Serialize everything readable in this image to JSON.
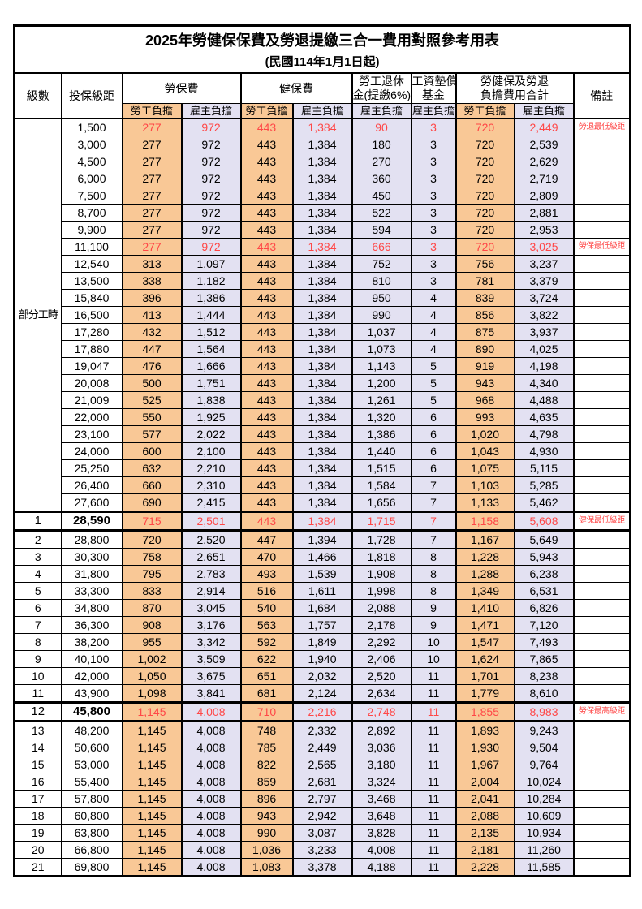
{
  "page": {
    "title_line1": "2025年勞健保保費及勞退提繳三合一費用對照參考用表",
    "title_line2": "(民國114年1月1日起)"
  },
  "header": {
    "level": "級數",
    "bracket": "投保級距",
    "labor_fee": "勞保費",
    "health_fee": "健保費",
    "pension_line1": "勞工退休",
    "pension_line2": "金(提繳6%)",
    "wage_fund_line1": "工資墊償",
    "wage_fund_line2": "基金",
    "total_line1": "勞健保及勞退",
    "total_line2": "負擔費用合計",
    "remark": "備註",
    "employee_share": "勞工負擔",
    "employer_share": "雇主負擔"
  },
  "part_time_label": "部分工時",
  "part_time_rowspan": 23,
  "colors": {
    "employee_col": "#F9C896",
    "employer_col": "#E3E1F2",
    "highlight_text": "#FF4747",
    "border": "#000000"
  },
  "rows": [
    {
      "level": "",
      "bracket": "1,500",
      "values": [
        "277",
        "972",
        "443",
        "1,384",
        "90",
        "3",
        "720",
        "2,449"
      ],
      "remark": "勞退最低級距",
      "red": true,
      "thick": false
    },
    {
      "level": "",
      "bracket": "3,000",
      "values": [
        "277",
        "972",
        "443",
        "1,384",
        "180",
        "3",
        "720",
        "2,539"
      ],
      "remark": "",
      "red": false,
      "thick": false
    },
    {
      "level": "",
      "bracket": "4,500",
      "values": [
        "277",
        "972",
        "443",
        "1,384",
        "270",
        "3",
        "720",
        "2,629"
      ],
      "remark": "",
      "red": false,
      "thick": false
    },
    {
      "level": "",
      "bracket": "6,000",
      "values": [
        "277",
        "972",
        "443",
        "1,384",
        "360",
        "3",
        "720",
        "2,719"
      ],
      "remark": "",
      "red": false,
      "thick": false
    },
    {
      "level": "",
      "bracket": "7,500",
      "values": [
        "277",
        "972",
        "443",
        "1,384",
        "450",
        "3",
        "720",
        "2,809"
      ],
      "remark": "",
      "red": false,
      "thick": false
    },
    {
      "level": "",
      "bracket": "8,700",
      "values": [
        "277",
        "972",
        "443",
        "1,384",
        "522",
        "3",
        "720",
        "2,881"
      ],
      "remark": "",
      "red": false,
      "thick": false
    },
    {
      "level": "",
      "bracket": "9,900",
      "values": [
        "277",
        "972",
        "443",
        "1,384",
        "594",
        "3",
        "720",
        "2,953"
      ],
      "remark": "",
      "red": false,
      "thick": false
    },
    {
      "level": "",
      "bracket": "11,100",
      "values": [
        "277",
        "972",
        "443",
        "1,384",
        "666",
        "3",
        "720",
        "3,025"
      ],
      "remark": "勞保最低級距",
      "red": true,
      "thick": false
    },
    {
      "level": "",
      "bracket": "12,540",
      "values": [
        "313",
        "1,097",
        "443",
        "1,384",
        "752",
        "3",
        "756",
        "3,237"
      ],
      "remark": "",
      "red": false,
      "thick": false
    },
    {
      "level": "",
      "bracket": "13,500",
      "values": [
        "338",
        "1,182",
        "443",
        "1,384",
        "810",
        "3",
        "781",
        "3,379"
      ],
      "remark": "",
      "red": false,
      "thick": false
    },
    {
      "level": "",
      "bracket": "15,840",
      "values": [
        "396",
        "1,386",
        "443",
        "1,384",
        "950",
        "4",
        "839",
        "3,724"
      ],
      "remark": "",
      "red": false,
      "thick": false
    },
    {
      "level": "",
      "bracket": "16,500",
      "values": [
        "413",
        "1,444",
        "443",
        "1,384",
        "990",
        "4",
        "856",
        "3,822"
      ],
      "remark": "",
      "red": false,
      "thick": false
    },
    {
      "level": "",
      "bracket": "17,280",
      "values": [
        "432",
        "1,512",
        "443",
        "1,384",
        "1,037",
        "4",
        "875",
        "3,937"
      ],
      "remark": "",
      "red": false,
      "thick": false
    },
    {
      "level": "",
      "bracket": "17,880",
      "values": [
        "447",
        "1,564",
        "443",
        "1,384",
        "1,073",
        "4",
        "890",
        "4,025"
      ],
      "remark": "",
      "red": false,
      "thick": false
    },
    {
      "level": "",
      "bracket": "19,047",
      "values": [
        "476",
        "1,666",
        "443",
        "1,384",
        "1,143",
        "5",
        "919",
        "4,198"
      ],
      "remark": "",
      "red": false,
      "thick": false
    },
    {
      "level": "",
      "bracket": "20,008",
      "values": [
        "500",
        "1,751",
        "443",
        "1,384",
        "1,200",
        "5",
        "943",
        "4,340"
      ],
      "remark": "",
      "red": false,
      "thick": false
    },
    {
      "level": "",
      "bracket": "21,009",
      "values": [
        "525",
        "1,838",
        "443",
        "1,384",
        "1,261",
        "5",
        "968",
        "4,488"
      ],
      "remark": "",
      "red": false,
      "thick": false
    },
    {
      "level": "",
      "bracket": "22,000",
      "values": [
        "550",
        "1,925",
        "443",
        "1,384",
        "1,320",
        "6",
        "993",
        "4,635"
      ],
      "remark": "",
      "red": false,
      "thick": false
    },
    {
      "level": "",
      "bracket": "23,100",
      "values": [
        "577",
        "2,022",
        "443",
        "1,384",
        "1,386",
        "6",
        "1,020",
        "4,798"
      ],
      "remark": "",
      "red": false,
      "thick": false
    },
    {
      "level": "",
      "bracket": "24,000",
      "values": [
        "600",
        "2,100",
        "443",
        "1,384",
        "1,440",
        "6",
        "1,043",
        "4,930"
      ],
      "remark": "",
      "red": false,
      "thick": false
    },
    {
      "level": "",
      "bracket": "25,250",
      "values": [
        "632",
        "2,210",
        "443",
        "1,384",
        "1,515",
        "6",
        "1,075",
        "5,115"
      ],
      "remark": "",
      "red": false,
      "thick": false
    },
    {
      "level": "",
      "bracket": "26,400",
      "values": [
        "660",
        "2,310",
        "443",
        "1,384",
        "1,584",
        "7",
        "1,103",
        "5,285"
      ],
      "remark": "",
      "red": false,
      "thick": false
    },
    {
      "level": "",
      "bracket": "27,600",
      "values": [
        "690",
        "2,415",
        "443",
        "1,384",
        "1,656",
        "7",
        "1,133",
        "5,462"
      ],
      "remark": "",
      "red": false,
      "thick": false
    },
    {
      "level": "1",
      "bracket": "28,590",
      "values": [
        "715",
        "2,501",
        "443",
        "1,384",
        "1,715",
        "7",
        "1,158",
        "5,608"
      ],
      "remark": "健保最低級距",
      "red": true,
      "thick": true
    },
    {
      "level": "2",
      "bracket": "28,800",
      "values": [
        "720",
        "2,520",
        "447",
        "1,394",
        "1,728",
        "7",
        "1,167",
        "5,649"
      ],
      "remark": "",
      "red": false,
      "thick": false
    },
    {
      "level": "3",
      "bracket": "30,300",
      "values": [
        "758",
        "2,651",
        "470",
        "1,466",
        "1,818",
        "8",
        "1,228",
        "5,943"
      ],
      "remark": "",
      "red": false,
      "thick": false
    },
    {
      "level": "4",
      "bracket": "31,800",
      "values": [
        "795",
        "2,783",
        "493",
        "1,539",
        "1,908",
        "8",
        "1,288",
        "6,238"
      ],
      "remark": "",
      "red": false,
      "thick": false
    },
    {
      "level": "5",
      "bracket": "33,300",
      "values": [
        "833",
        "2,914",
        "516",
        "1,611",
        "1,998",
        "8",
        "1,349",
        "6,531"
      ],
      "remark": "",
      "red": false,
      "thick": false
    },
    {
      "level": "6",
      "bracket": "34,800",
      "values": [
        "870",
        "3,045",
        "540",
        "1,684",
        "2,088",
        "9",
        "1,410",
        "6,826"
      ],
      "remark": "",
      "red": false,
      "thick": false
    },
    {
      "level": "7",
      "bracket": "36,300",
      "values": [
        "908",
        "3,176",
        "563",
        "1,757",
        "2,178",
        "9",
        "1,471",
        "7,120"
      ],
      "remark": "",
      "red": false,
      "thick": false
    },
    {
      "level": "8",
      "bracket": "38,200",
      "values": [
        "955",
        "3,342",
        "592",
        "1,849",
        "2,292",
        "10",
        "1,547",
        "7,493"
      ],
      "remark": "",
      "red": false,
      "thick": false
    },
    {
      "level": "9",
      "bracket": "40,100",
      "values": [
        "1,002",
        "3,509",
        "622",
        "1,940",
        "2,406",
        "10",
        "1,624",
        "7,865"
      ],
      "remark": "",
      "red": false,
      "thick": false
    },
    {
      "level": "10",
      "bracket": "42,000",
      "values": [
        "1,050",
        "3,675",
        "651",
        "2,032",
        "2,520",
        "11",
        "1,701",
        "8,238"
      ],
      "remark": "",
      "red": false,
      "thick": false
    },
    {
      "level": "11",
      "bracket": "43,900",
      "values": [
        "1,098",
        "3,841",
        "681",
        "2,124",
        "2,634",
        "11",
        "1,779",
        "8,610"
      ],
      "remark": "",
      "red": false,
      "thick": false
    },
    {
      "level": "12",
      "bracket": "45,800",
      "values": [
        "1,145",
        "4,008",
        "710",
        "2,216",
        "2,748",
        "11",
        "1,855",
        "8,983"
      ],
      "remark": "勞保最高級距",
      "red": true,
      "thick": true
    },
    {
      "level": "13",
      "bracket": "48,200",
      "values": [
        "1,145",
        "4,008",
        "748",
        "2,332",
        "2,892",
        "11",
        "1,893",
        "9,243"
      ],
      "remark": "",
      "red": false,
      "thick": false
    },
    {
      "level": "14",
      "bracket": "50,600",
      "values": [
        "1,145",
        "4,008",
        "785",
        "2,449",
        "3,036",
        "11",
        "1,930",
        "9,504"
      ],
      "remark": "",
      "red": false,
      "thick": false
    },
    {
      "level": "15",
      "bracket": "53,000",
      "values": [
        "1,145",
        "4,008",
        "822",
        "2,565",
        "3,180",
        "11",
        "1,967",
        "9,764"
      ],
      "remark": "",
      "red": false,
      "thick": false
    },
    {
      "level": "16",
      "bracket": "55,400",
      "values": [
        "1,145",
        "4,008",
        "859",
        "2,681",
        "3,324",
        "11",
        "2,004",
        "10,024"
      ],
      "remark": "",
      "red": false,
      "thick": false
    },
    {
      "level": "17",
      "bracket": "57,800",
      "values": [
        "1,145",
        "4,008",
        "896",
        "2,797",
        "3,468",
        "11",
        "2,041",
        "10,284"
      ],
      "remark": "",
      "red": false,
      "thick": false
    },
    {
      "level": "18",
      "bracket": "60,800",
      "values": [
        "1,145",
        "4,008",
        "943",
        "2,942",
        "3,648",
        "11",
        "2,088",
        "10,609"
      ],
      "remark": "",
      "red": false,
      "thick": false
    },
    {
      "level": "19",
      "bracket": "63,800",
      "values": [
        "1,145",
        "4,008",
        "990",
        "3,087",
        "3,828",
        "11",
        "2,135",
        "10,934"
      ],
      "remark": "",
      "red": false,
      "thick": false
    },
    {
      "level": "20",
      "bracket": "66,800",
      "values": [
        "1,145",
        "4,008",
        "1,036",
        "3,233",
        "4,008",
        "11",
        "2,181",
        "11,260"
      ],
      "remark": "",
      "red": false,
      "thick": false
    },
    {
      "level": "21",
      "bracket": "69,800",
      "values": [
        "1,145",
        "4,008",
        "1,083",
        "3,378",
        "4,188",
        "11",
        "2,228",
        "11,585"
      ],
      "remark": "",
      "red": false,
      "thick": false
    }
  ]
}
